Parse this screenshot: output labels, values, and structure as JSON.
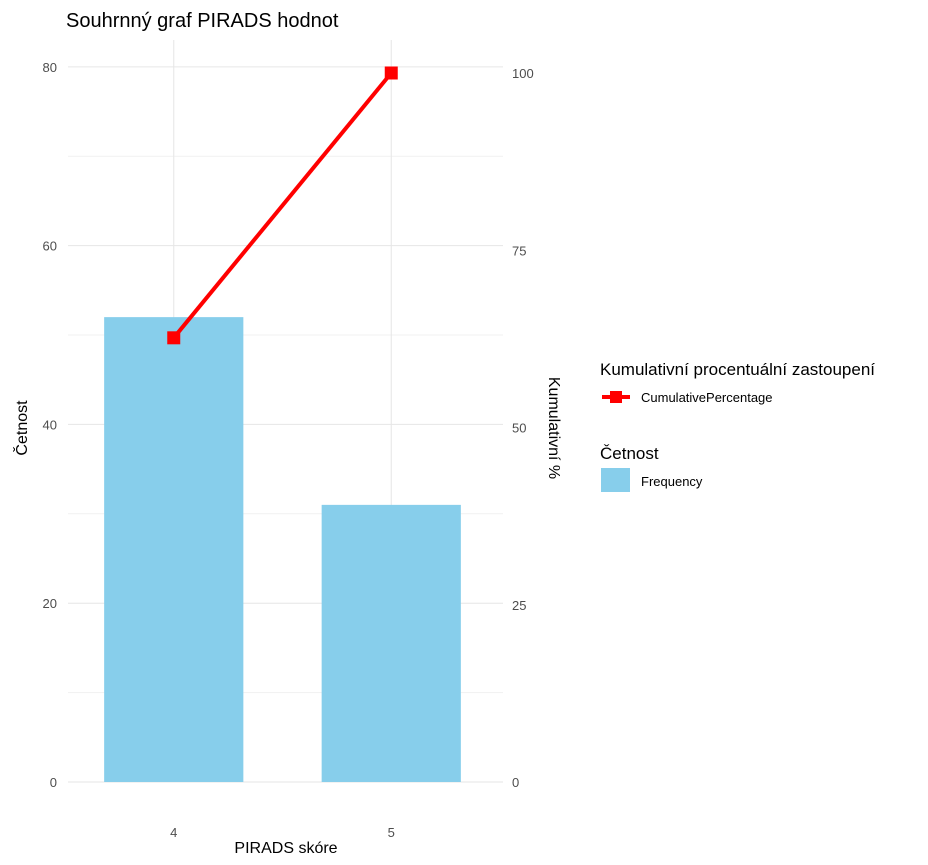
{
  "chart_data": {
    "type": "bar",
    "title": "Souhrnný graf PIRADS hodnot",
    "xlabel": "PIRADS skóre",
    "ylabel": "Četnost",
    "y2label": "Kumulativní %",
    "categories": [
      "4",
      "5"
    ],
    "ylim": [
      0,
      83
    ],
    "y_ticks": [
      0,
      20,
      40,
      60,
      80
    ],
    "y2lim": [
      0,
      100
    ],
    "y2_ticks": [
      0,
      25,
      50,
      75,
      100
    ],
    "grid": true,
    "series": [
      {
        "name": "Frequency",
        "type": "bar",
        "axis": "left",
        "color": "#87CEEB",
        "values": [
          52,
          31
        ]
      },
      {
        "name": "CumulativePercentage",
        "type": "line",
        "axis": "right",
        "marker": "square",
        "color": "#FF0000",
        "values": [
          62.65,
          100
        ]
      }
    ],
    "legend": {
      "position": "right",
      "groups": [
        {
          "title": "Kumulativní procentuální zastoupení",
          "entries": [
            "CumulativePercentage"
          ]
        },
        {
          "title": "Četnost",
          "entries": [
            "Frequency"
          ]
        }
      ]
    }
  }
}
